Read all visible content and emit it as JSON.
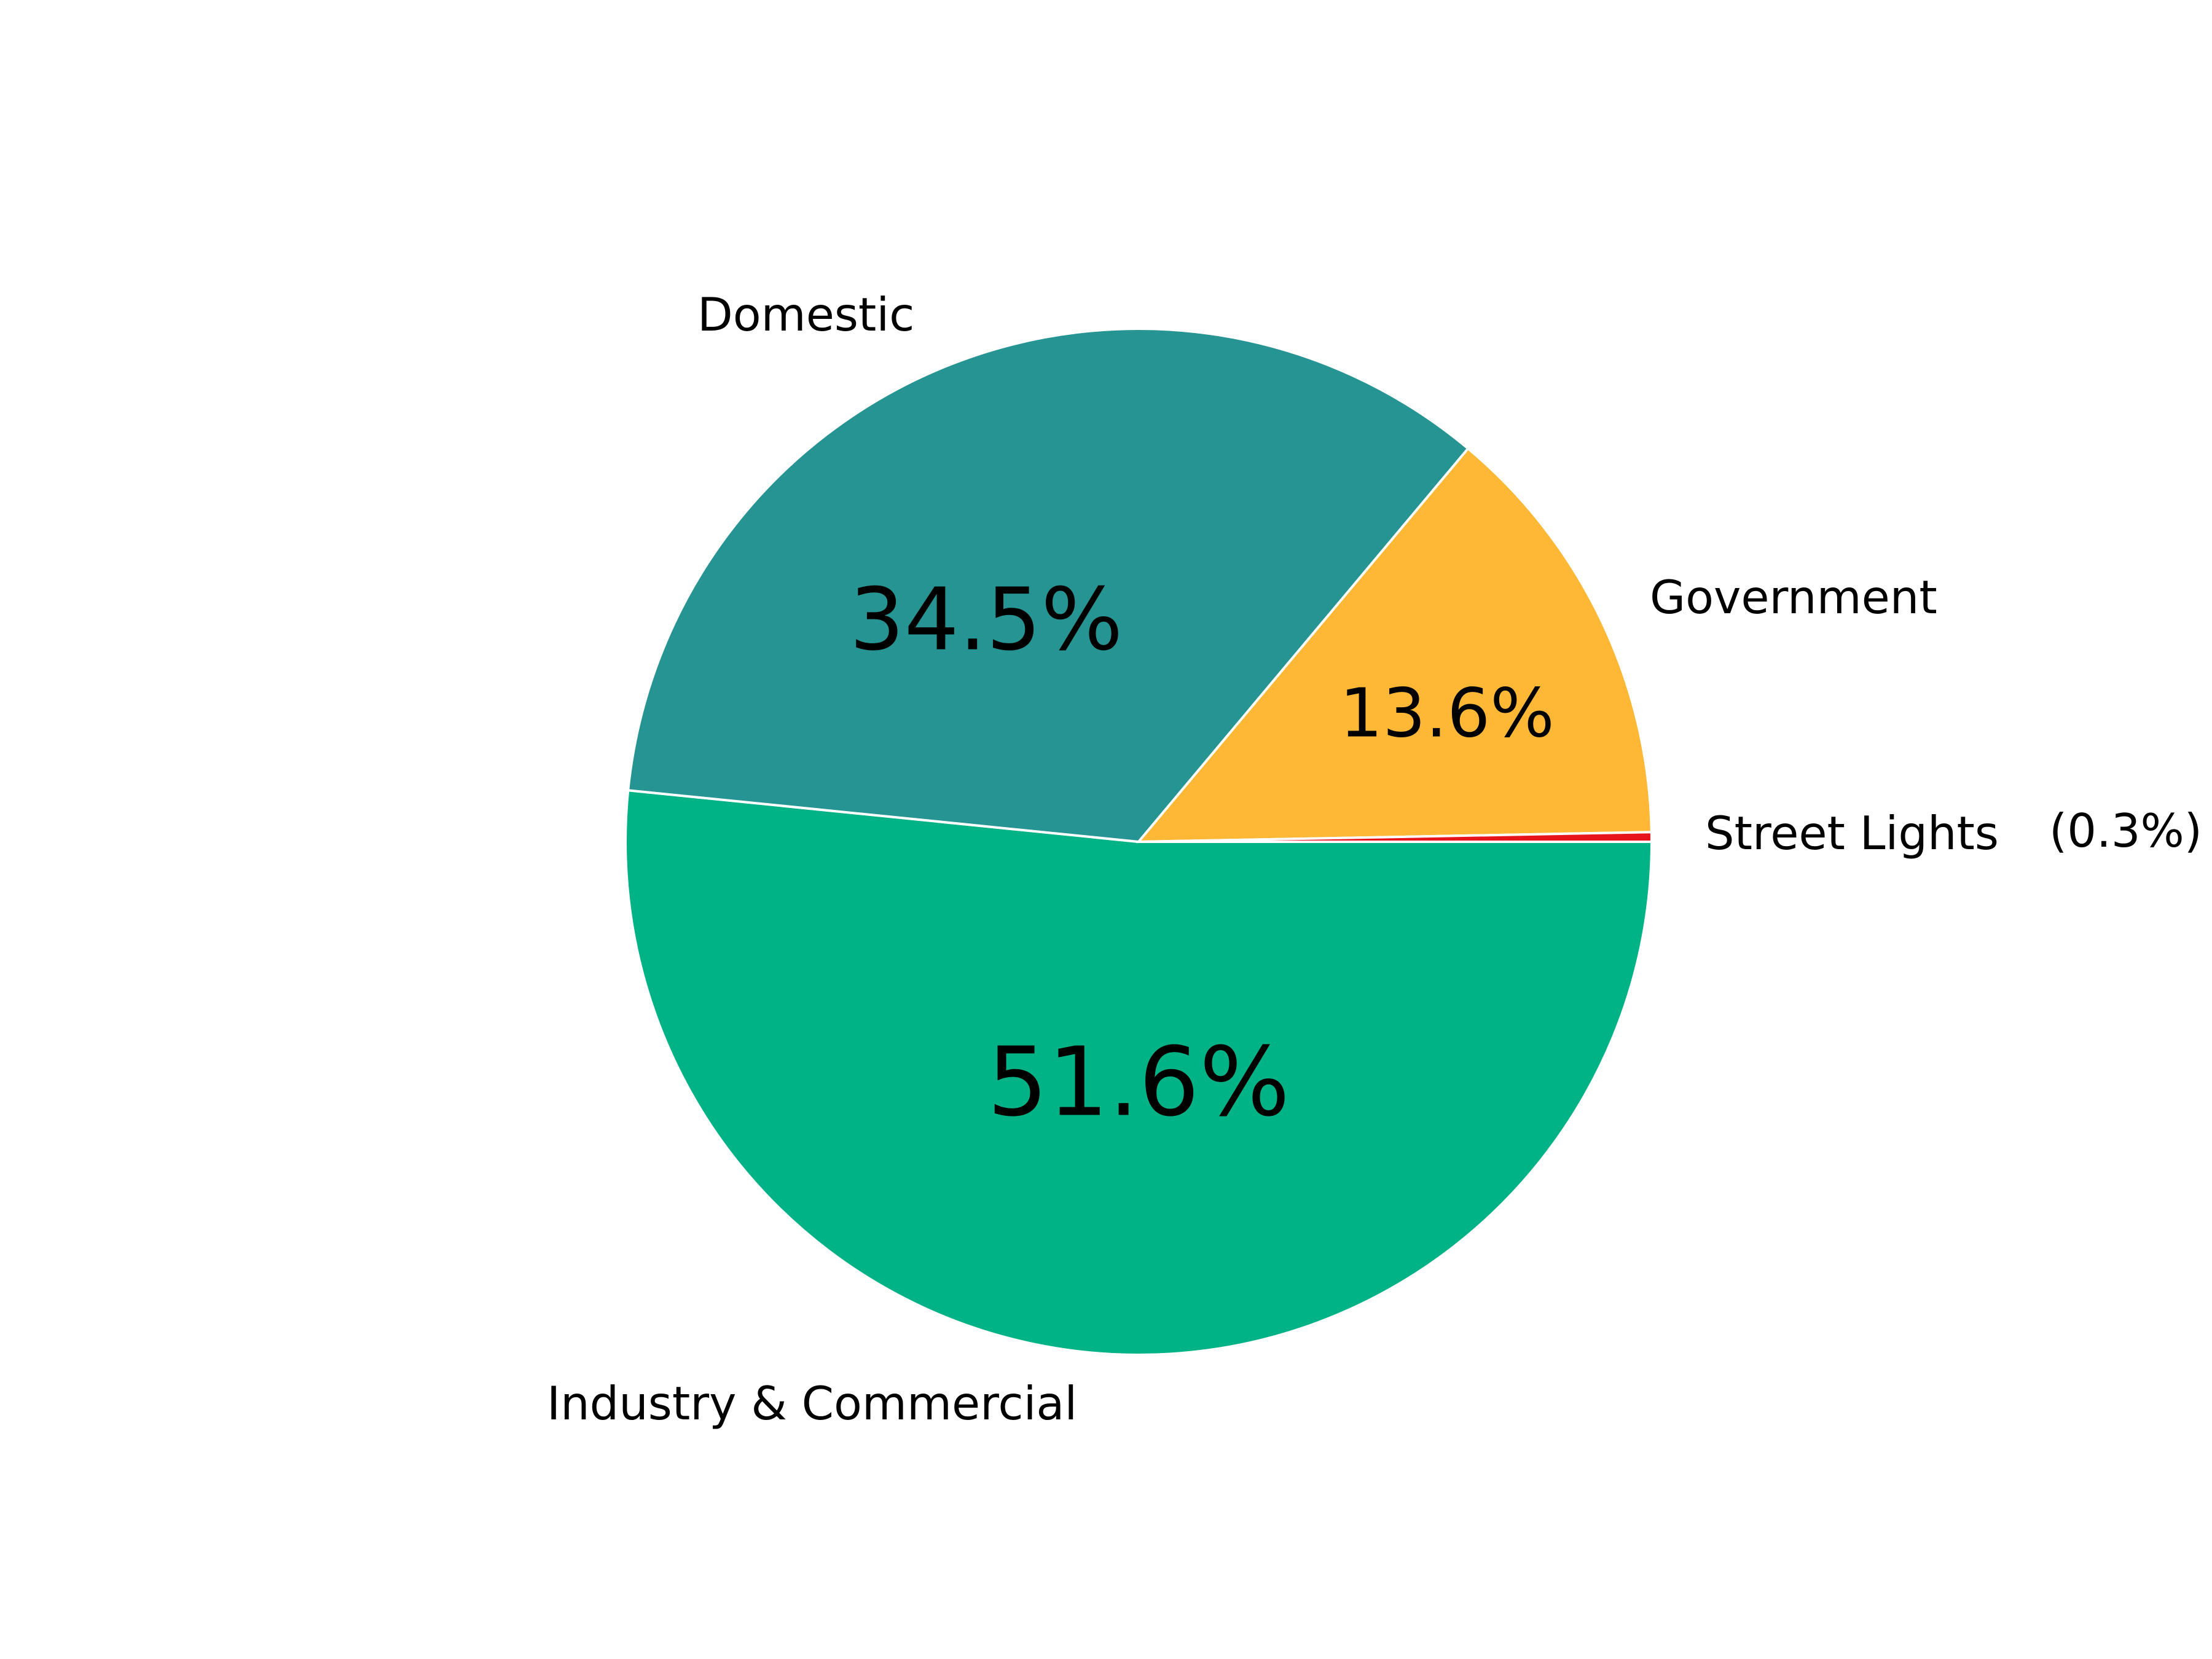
{
  "chart_data": {
    "type": "pie",
    "slices": [
      {
        "label": "Industry & Commercial",
        "value": 51.6,
        "pct_label": "51.6%",
        "color": "#00b386"
      },
      {
        "label": "Domestic",
        "value": 34.5,
        "pct_label": "34.5%",
        "color": "#269492"
      },
      {
        "label": "Government",
        "value": 13.6,
        "pct_label": "13.6%",
        "color": "#ffb835"
      },
      {
        "label": "Street Lights",
        "value": 0.3,
        "pct_label": "(0.3%)",
        "color": "#e8141b"
      }
    ]
  }
}
